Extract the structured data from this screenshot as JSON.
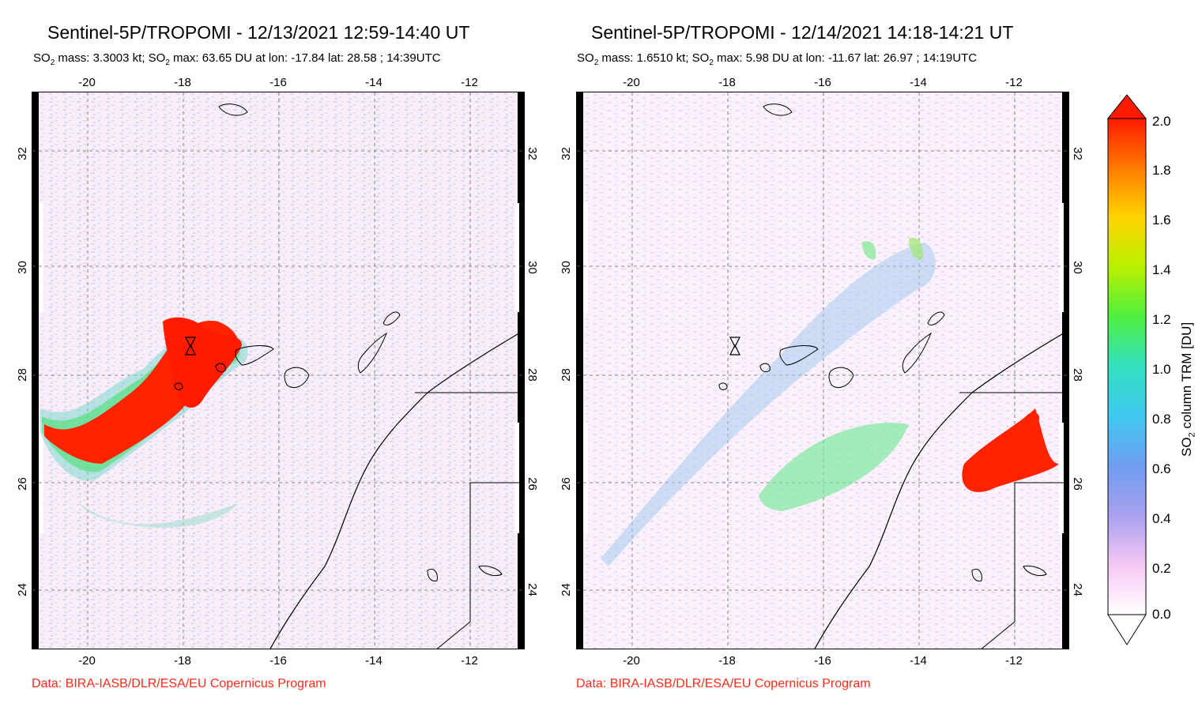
{
  "panels": [
    {
      "title": "Sentinel-5P/TROPOMI - 12/13/2021 12:59-14:40 UT",
      "subtitle_pre": "SO",
      "subtitle_sub": "2",
      "subtitle_mid": " mass: 3.3003 kt; SO",
      "subtitle_sub2": "2",
      "subtitle_post": " max: 63.65 DU at lon: -17.84 lat: 28.58 ; 14:39UTC",
      "credit": "Data: BIRA-IASB/DLR/ESA/EU Copernicus Program"
    },
    {
      "title": "Sentinel-5P/TROPOMI - 12/14/2021 14:18-14:21 UT",
      "subtitle_pre": "SO",
      "subtitle_sub": "2",
      "subtitle_mid": " mass: 1.6510 kt; SO",
      "subtitle_sub2": "2",
      "subtitle_post": " max: 5.98 DU at lon: -11.67 lat: 26.97 ; 14:19UTC",
      "credit": "Data: BIRA-IASB/DLR/ESA/EU Copernicus Program"
    }
  ],
  "axes": {
    "lon_ticks": [
      "-20",
      "-18",
      "-16",
      "-14",
      "-12"
    ],
    "lat_ticks": [
      "32",
      "30",
      "28",
      "26",
      "24"
    ]
  },
  "colorbar": {
    "label_pre": "SO",
    "label_sub": "2",
    "label_post": " column TRM [DU]",
    "ticks": [
      "2.0",
      "1.8",
      "1.6",
      "1.4",
      "1.2",
      "1.0",
      "0.8",
      "0.6",
      "0.4",
      "0.2",
      "0.0"
    ],
    "colors": [
      "#ff1a00",
      "#ff7a00",
      "#ffd400",
      "#b8f000",
      "#4ef040",
      "#33e0c0",
      "#40c8f0",
      "#6f9ef0",
      "#a9a0f0",
      "#d8a8f0",
      "#f4c8f4",
      "#ffffff"
    ]
  }
}
